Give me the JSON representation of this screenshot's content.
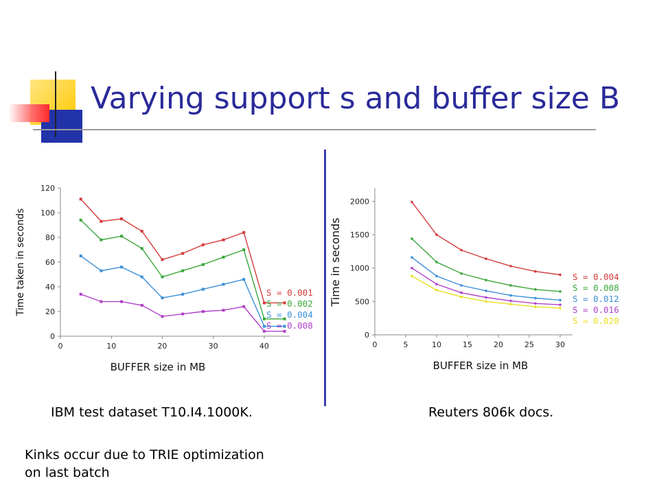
{
  "slide": {
    "title": "Varying support s and buffer size B",
    "left_caption": "IBM test dataset T10.I4.1000K.",
    "right_caption": "Reuters 806k docs.",
    "note_line1": "Kinks occur due to TRIE optimization",
    "note_line2": "on last batch"
  },
  "chart_data": [
    {
      "type": "line",
      "xlabel": "BUFFER size in MB",
      "ylabel": "Time taken in seconds",
      "xlim": [
        0,
        45
      ],
      "ylim": [
        0,
        120
      ],
      "xticks": [
        0,
        10,
        20,
        30,
        40
      ],
      "yticks": [
        0,
        20,
        40,
        60,
        80,
        100,
        120
      ],
      "grid": false,
      "legend": "right",
      "x": [
        4,
        8,
        12,
        16,
        20,
        24,
        28,
        32,
        36,
        40,
        44
      ],
      "series": [
        {
          "name": "S = 0.001",
          "color": "#d43a3a",
          "values": [
            111,
            93,
            95,
            85,
            62,
            67,
            74,
            78,
            84,
            27,
            27
          ]
        },
        {
          "name": "S = 0.002",
          "color": "#3aa63a",
          "values": [
            94,
            78,
            81,
            71,
            48,
            53,
            58,
            64,
            70,
            14,
            14
          ]
        },
        {
          "name": "S = 0.004",
          "color": "#3a8fd8",
          "values": [
            65,
            53,
            56,
            48,
            31,
            34,
            38,
            42,
            46,
            8,
            8
          ]
        },
        {
          "name": "S = 0.008",
          "color": "#b040c8",
          "values": [
            34,
            28,
            28,
            25,
            16,
            18,
            20,
            21,
            24,
            4,
            4
          ]
        }
      ]
    },
    {
      "type": "line",
      "xlabel": "BUFFER size in MB",
      "ylabel": "Time in seconds",
      "xlim": [
        0,
        32
      ],
      "ylim": [
        0,
        2200
      ],
      "xticks": [
        0,
        5,
        10,
        15,
        20,
        25,
        30
      ],
      "yticks": [
        0,
        500,
        1000,
        1500,
        2000
      ],
      "grid": false,
      "legend": "right",
      "x": [
        6,
        10,
        14,
        18,
        22,
        26,
        30
      ],
      "series": [
        {
          "name": "S = 0.004",
          "color": "#d43a3a",
          "values": [
            1990,
            1500,
            1270,
            1140,
            1030,
            950,
            900
          ]
        },
        {
          "name": "S = 0.008",
          "color": "#3aa63a",
          "values": [
            1440,
            1090,
            920,
            820,
            740,
            680,
            650
          ]
        },
        {
          "name": "S = 0.012",
          "color": "#3a8fd8",
          "values": [
            1160,
            880,
            740,
            660,
            590,
            550,
            520
          ]
        },
        {
          "name": "S = 0.016",
          "color": "#b040c8",
          "values": [
            1000,
            760,
            630,
            560,
            510,
            470,
            450
          ]
        },
        {
          "name": "S = 0.020",
          "color": "#e8e020",
          "values": [
            880,
            670,
            570,
            500,
            460,
            420,
            400
          ]
        }
      ]
    }
  ]
}
